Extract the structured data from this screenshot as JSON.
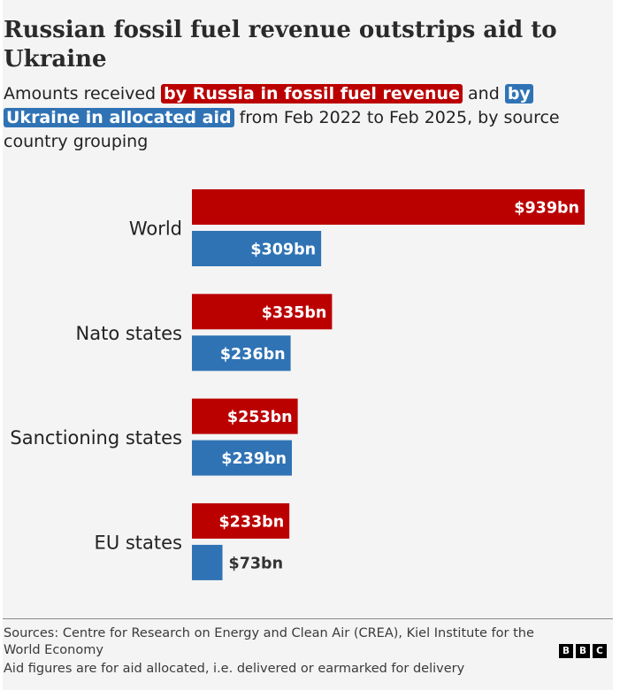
{
  "title": "Russian fossil fuel revenue outstrips aid to Ukraine",
  "subtitle": {
    "prefix": "Amounts received ",
    "russia_label": "by Russia in fossil fuel revenue",
    "connector": " and ",
    "ukraine_label": "by Ukraine in allocated aid",
    "suffix": " from Feb 2022 to Feb 2025, by source country grouping"
  },
  "colors": {
    "russia": "#bb0000",
    "ukraine": "#2f73b5",
    "background": "#f4f4f4"
  },
  "chart_data": {
    "type": "bar",
    "orientation": "horizontal",
    "categories": [
      "World",
      "Nato states",
      "Sanctioning states",
      "EU states"
    ],
    "series": [
      {
        "name": "by Russia in fossil fuel revenue",
        "values": [
          939,
          335,
          253,
          233
        ],
        "labels": [
          "$939bn",
          "$335bn",
          "$253bn",
          "$233bn"
        ],
        "color": "#bb0000"
      },
      {
        "name": "by Ukraine in allocated aid",
        "values": [
          309,
          236,
          239,
          73
        ],
        "labels": [
          "$309bn",
          "$236bn",
          "$239bn",
          "$73bn"
        ],
        "color": "#2f73b5"
      }
    ],
    "xlim": [
      0,
      939
    ],
    "grid": false,
    "legend": "inline-in-subtitle"
  },
  "footer": {
    "sources": "Sources: Centre for Research on Energy and Clean Air (CREA), Kiel Institute for the World Economy",
    "note": "Aid figures are for aid allocated, i.e. delivered or earmarked for delivery",
    "logo_letters": [
      "B",
      "B",
      "C"
    ]
  }
}
